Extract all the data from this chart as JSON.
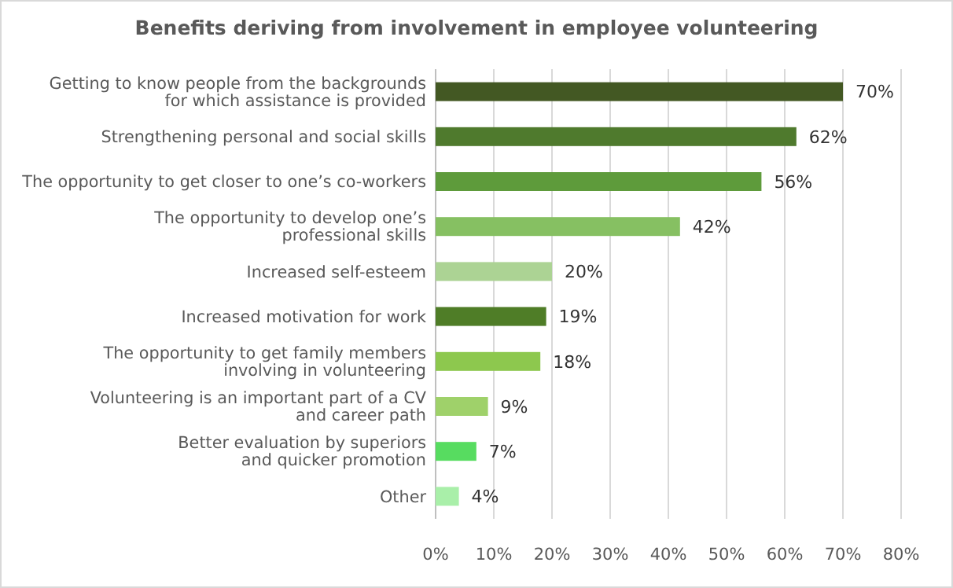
{
  "chart_data": {
    "type": "bar",
    "orientation": "horizontal",
    "title": "Benefits deriving from involvement in employee volunteering",
    "categories": [
      "Getting to know people from the backgrounds\nfor which assistance is provided",
      "Strengthening personal and social skills",
      "The opportunity to get closer to one’s co-workers",
      "The opportunity to develop one’s\nprofessional skills",
      "Increased self-esteem",
      "Increased motivation for work",
      "The opportunity to get family members\ninvolving in volunteering",
      "Volunteering is an important part of a CV\nand career path",
      "Better evaluation by superiors\nand quicker promotion",
      "Other"
    ],
    "values": [
      70,
      62,
      56,
      42,
      20,
      19,
      18,
      9,
      7,
      4
    ],
    "colors": [
      "#435823",
      "#4f7a2d",
      "#5e9b3b",
      "#86c062",
      "#acd394",
      "#4f7d27",
      "#8dc84e",
      "#9fd16a",
      "#57dc60",
      "#a9efa9"
    ],
    "value_labels": [
      "70%",
      "62%",
      "56%",
      "42%",
      "20%",
      "19%",
      "18%",
      "9%",
      "7%",
      "4%"
    ],
    "xlim": [
      0,
      80
    ],
    "xticks": [
      {
        "value": 0,
        "label": "0%"
      },
      {
        "value": 10,
        "label": "10%"
      },
      {
        "value": 20,
        "label": "20%"
      },
      {
        "value": 30,
        "label": "30%"
      },
      {
        "value": 40,
        "label": "40%"
      },
      {
        "value": 50,
        "label": "50%"
      },
      {
        "value": 60,
        "label": "60%"
      },
      {
        "value": 70,
        "label": "70%"
      },
      {
        "value": 80,
        "label": "80%"
      }
    ],
    "grid": "x"
  }
}
